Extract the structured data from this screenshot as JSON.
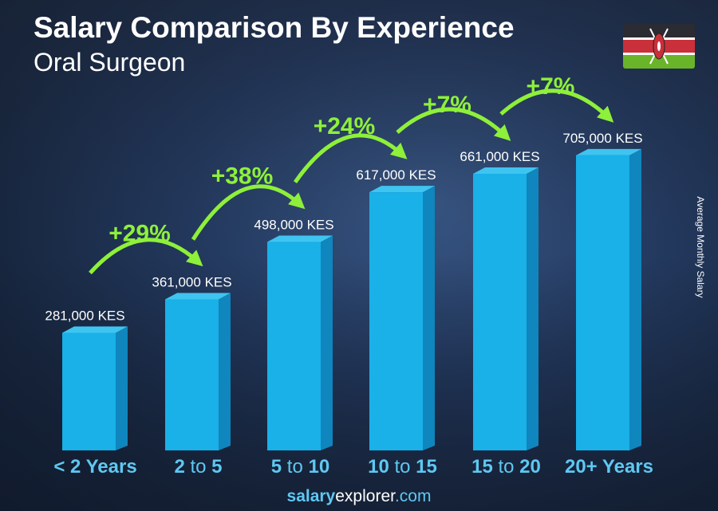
{
  "title": "Salary Comparison By Experience",
  "subtitle": "Oral Surgeon",
  "ylabel": "Average Monthly Salary",
  "footer": {
    "brand_bold": "salary",
    "brand_regular": "explorer",
    "brand_tld": ".com"
  },
  "flag": "Kenya",
  "colors": {
    "bar_front": "#1ab0e8",
    "bar_side": "#0f86bd",
    "bar_top": "#3fc4f0",
    "category": "#5ec8f2",
    "percent": "#8ef03a"
  },
  "chart_data": {
    "type": "bar",
    "categories": [
      "< 2 Years",
      "2 to 5",
      "5 to 10",
      "10 to 15",
      "15 to 20",
      "20+ Years"
    ],
    "category_parts": [
      [
        "< 2 Years",
        ""
      ],
      [
        "2",
        "to",
        "5"
      ],
      [
        "5",
        "to",
        "10"
      ],
      [
        "10",
        "to",
        "15"
      ],
      [
        "15",
        "to",
        "20"
      ],
      [
        "20+ Years",
        ""
      ]
    ],
    "values": [
      281000,
      361000,
      498000,
      617000,
      661000,
      705000
    ],
    "value_labels": [
      "281,000 KES",
      "361,000 KES",
      "498,000 KES",
      "617,000 KES",
      "661,000 KES",
      "705,000 KES"
    ],
    "changes": [
      "+29%",
      "+38%",
      "+24%",
      "+7%",
      "+7%"
    ],
    "unit": "KES",
    "ylabel": "Average Monthly Salary"
  }
}
